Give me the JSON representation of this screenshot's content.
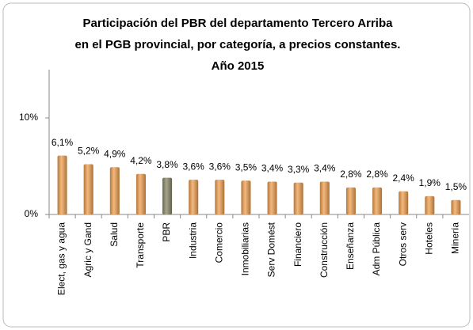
{
  "chart_data": {
    "type": "bar",
    "title": [
      "Participación del PBR del departamento Tercero Arriba",
      "en el PGB provincial, por categoría, a precios constantes.",
      "Año 2015"
    ],
    "categories": [
      "Elect, gas y agua",
      "Agric y Gand",
      "Salud",
      "Transporte",
      "PBR",
      "Industria",
      "Comercio",
      "Inmobiliarias",
      "Serv Domést",
      "Financiero",
      "Construcción",
      "Enseñanza",
      "Adm Pública",
      "Otros serv",
      "Hoteles",
      "Minería"
    ],
    "values": [
      6.1,
      5.2,
      4.9,
      4.2,
      3.8,
      3.6,
      3.6,
      3.5,
      3.4,
      3.3,
      3.4,
      2.8,
      2.8,
      2.4,
      1.9,
      1.5
    ],
    "value_labels": [
      "6,1%",
      "5,2%",
      "4,9%",
      "4,2%",
      "3,8%",
      "3,6%",
      "3,6%",
      "3,5%",
      "3,4%",
      "3,3%",
      "3,4%",
      "2,8%",
      "2,8%",
      "2,4%",
      "1,9%",
      "1,5%"
    ],
    "colors": [
      "#f0a050",
      "#f0a050",
      "#f0a050",
      "#f0a050",
      "#8a8766",
      "#f0a050",
      "#f0a050",
      "#f0a050",
      "#f0a050",
      "#f0a050",
      "#f0a050",
      "#f0a050",
      "#f0a050",
      "#f0a050",
      "#f0a050",
      "#f0a050"
    ],
    "ylim": [
      0,
      15
    ],
    "yticks": [
      {
        "value": 0,
        "label": "0%"
      },
      {
        "value": 10,
        "label": "10%"
      }
    ],
    "grid": false
  }
}
